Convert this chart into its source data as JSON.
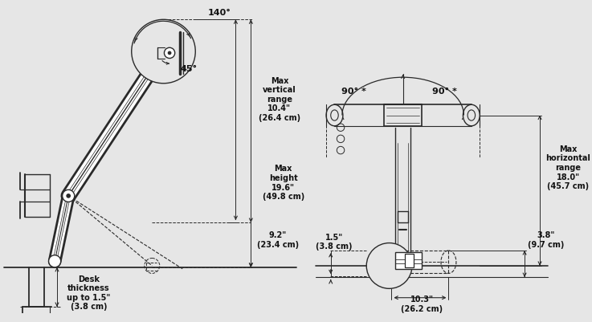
{
  "bg_color": "#e6e6e6",
  "line_color": "#2a2a2a",
  "text_color": "#111111",
  "dim_color": "#222222",
  "ann": {
    "deg140": "140°",
    "deg45": "45°",
    "max_vert_range": "Max\nvertical\nrange\n10.4\"\n(26.4 cm)",
    "max_height": "Max\nheight\n19.6\"\n(49.8 cm)",
    "dim_9_2": "9.2\"\n(23.4 cm)",
    "desk": "Desk\nthickness\nup to 1.5\"\n(3.8 cm)",
    "deg90_l": "90° *",
    "deg90_r": "90° *",
    "max_horiz_range": "Max\nhorizontal\nrange\n18.0\"\n(45.7 cm)",
    "dim_3_8": "3.8\"\n(9.7 cm)",
    "dim_1_5": "1.5\"\n(3.8 cm)",
    "dim_10_3": "10.3\"\n(26.2 cm)"
  }
}
